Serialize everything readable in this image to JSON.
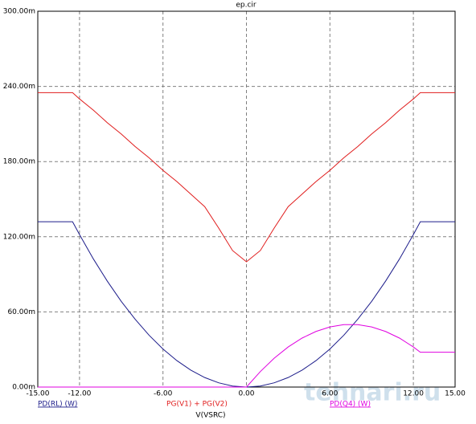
{
  "chart_data": {
    "type": "line",
    "title": "ep.cir",
    "x_label": "V(VSRC)",
    "x": [
      -15,
      -14,
      -13,
      -12.5,
      -12,
      -11,
      -10,
      -9,
      -8,
      -7,
      -6,
      -5,
      -4,
      -3,
      -2,
      -1,
      0,
      1,
      2,
      3,
      4,
      5,
      6,
      7,
      8,
      9,
      10,
      11,
      12,
      12.5,
      13,
      14,
      15
    ],
    "series": [
      {
        "name": "PD(RL) (W)",
        "color": "#1c1c8a",
        "values": [
          0.132,
          0.132,
          0.132,
          0.132,
          0.1217,
          0.1022,
          0.0845,
          0.0684,
          0.0541,
          0.0414,
          0.0304,
          0.0211,
          0.0135,
          0.0076,
          0.0034,
          0.0008,
          0,
          0.0008,
          0.0034,
          0.0076,
          0.0135,
          0.0211,
          0.0304,
          0.0414,
          0.0541,
          0.0684,
          0.0845,
          0.1022,
          0.1217,
          0.132,
          0.132,
          0.132,
          0.132
        ]
      },
      {
        "name": "PG(V1) + PG(V2)",
        "color": "#e01c1c",
        "values": [
          0.235,
          0.235,
          0.235,
          0.235,
          0.23,
          0.221,
          0.211,
          0.202,
          0.192,
          0.183,
          0.173,
          0.164,
          0.154,
          0.144,
          0.127,
          0.109,
          0.1,
          0.109,
          0.127,
          0.144,
          0.154,
          0.164,
          0.173,
          0.183,
          0.192,
          0.202,
          0.211,
          0.221,
          0.23,
          0.235,
          0.235,
          0.235,
          0.235
        ]
      },
      {
        "name": "PD(Q4) (W)",
        "color": "#e000e0",
        "values": [
          0,
          0,
          0,
          0,
          0,
          0,
          0,
          0,
          0,
          0,
          0,
          0,
          0,
          0,
          0,
          0,
          0,
          0.0124,
          0.0231,
          0.032,
          0.0391,
          0.0444,
          0.048,
          0.0498,
          0.0498,
          0.048,
          0.0444,
          0.0391,
          0.032,
          0.0278,
          0.0278,
          0.0278,
          0.0278
        ]
      }
    ],
    "xlim": [
      -15,
      15
    ],
    "ylim": [
      0,
      0.3
    ],
    "xticks": [
      {
        "value": -15,
        "label": "-15.00"
      },
      {
        "value": -12,
        "label": "-12.00"
      },
      {
        "value": -6,
        "label": "-6.00"
      },
      {
        "value": 0,
        "label": "0.00"
      },
      {
        "value": 6,
        "label": "6.00"
      },
      {
        "value": 12,
        "label": "12.00"
      },
      {
        "value": 15,
        "label": "15.00"
      }
    ],
    "yticks": [
      {
        "value": 0,
        "label": "0.00m"
      },
      {
        "value": 0.06,
        "label": "60.00m"
      },
      {
        "value": 0.12,
        "label": "120.00m"
      },
      {
        "value": 0.18,
        "label": "180.00m"
      },
      {
        "value": 0.24,
        "label": "240.00m"
      },
      {
        "value": 0.3,
        "label": "300.00m"
      }
    ],
    "grid": true,
    "watermark": "tehnari.ru"
  }
}
